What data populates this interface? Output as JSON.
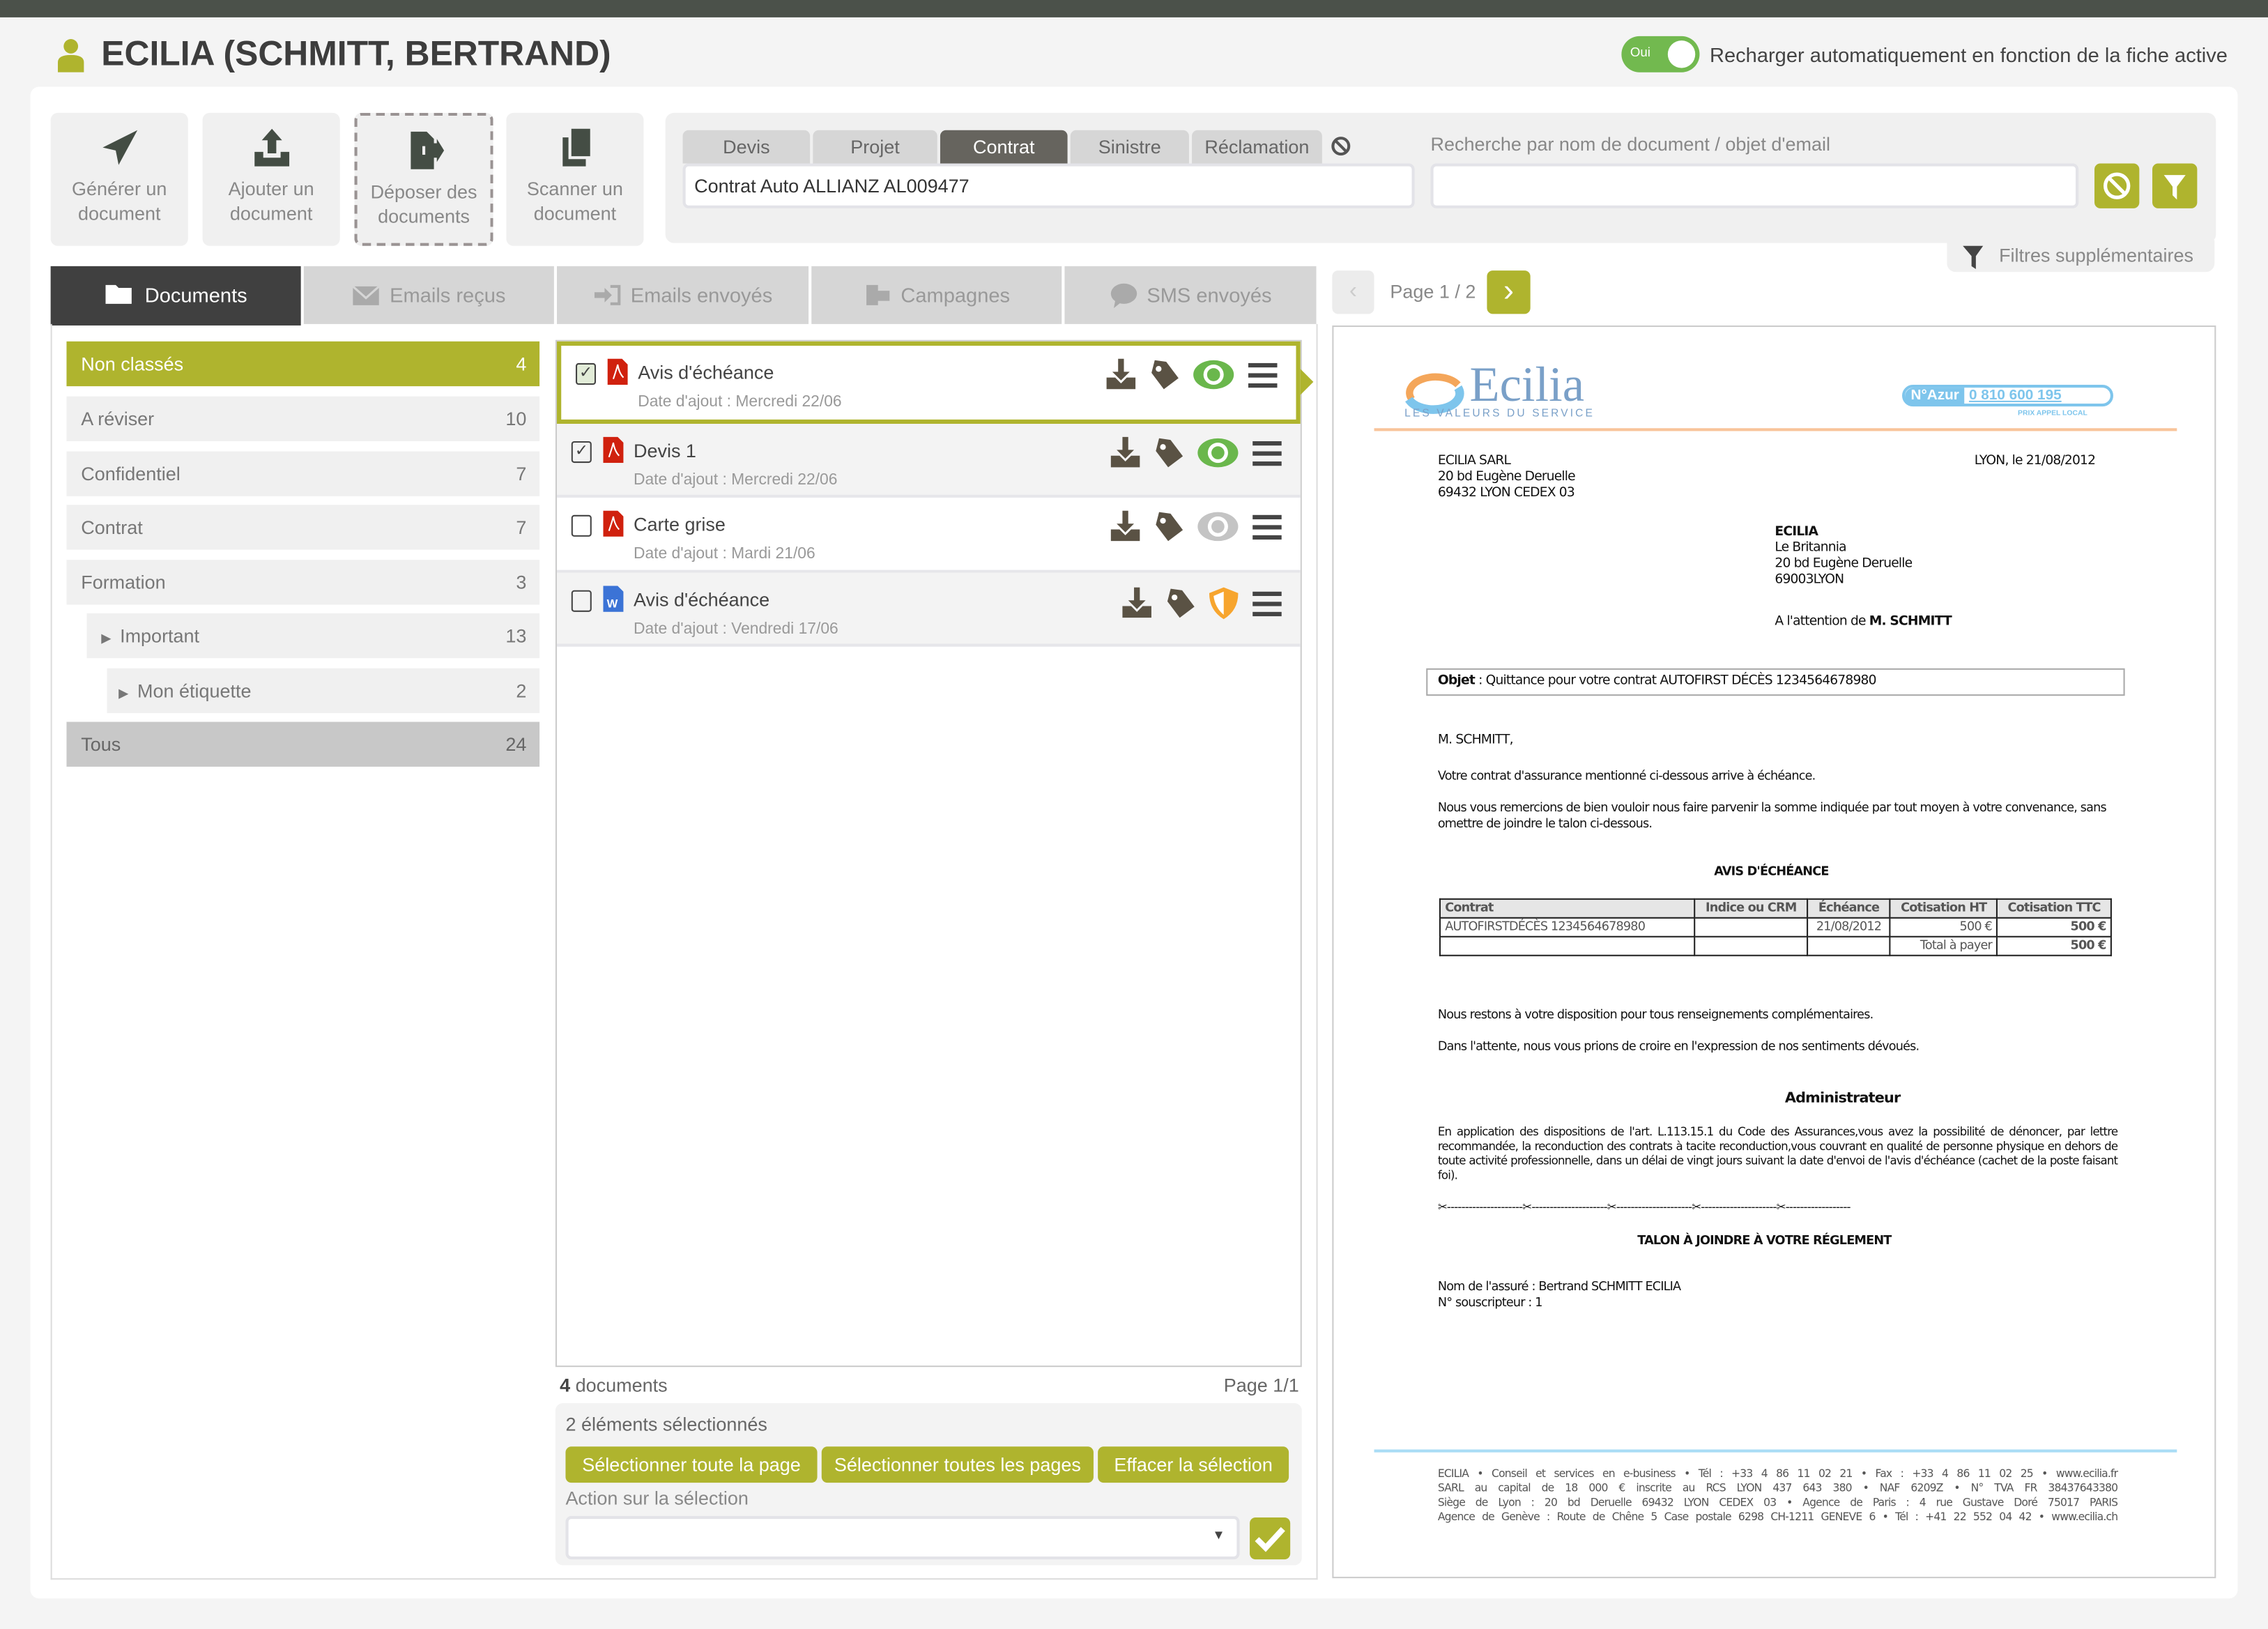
{
  "header": {
    "title": "ECILIA (SCHMITT, BERTRAND)",
    "toggle_state": "Oui",
    "toggle_label": "Recharger automatiquement en fonction de la fiche active"
  },
  "toolbar": [
    {
      "line1": "Générer un",
      "line2": "document",
      "icon": "paper-plane-icon"
    },
    {
      "line1": "Ajouter un",
      "line2": "document",
      "icon": "upload-icon"
    },
    {
      "line1": "Déposer des",
      "line2": "documents",
      "icon": "file-export-icon"
    },
    {
      "line1": "Scanner un",
      "line2": "document",
      "icon": "copy-icon"
    }
  ],
  "filters": {
    "context_tabs": [
      "Devis",
      "Projet",
      "Contrat",
      "Sinistre",
      "Réclamation"
    ],
    "active_context_tab": "Contrat",
    "context_value": "Contrat Auto ALLIANZ AL009477",
    "search_label": "Recherche par nom de document / objet d'email",
    "search_value": "",
    "extra_filters": "Filtres supplémentaires"
  },
  "main_tabs": [
    {
      "label": "Documents",
      "icon": "folder-icon"
    },
    {
      "label": "Emails reçus",
      "icon": "envelope-icon"
    },
    {
      "label": "Emails envoyés",
      "icon": "sign-in-icon"
    },
    {
      "label": "Campagnes",
      "icon": "campaign-icon"
    },
    {
      "label": "SMS envoyés",
      "icon": "sms-icon"
    }
  ],
  "categories": [
    {
      "label": "Non classés",
      "count": "4"
    },
    {
      "label": "A réviser",
      "count": "10"
    },
    {
      "label": "Confidentiel",
      "count": "7"
    },
    {
      "label": "Contrat",
      "count": "7"
    },
    {
      "label": "Formation",
      "count": "3"
    },
    {
      "label": "Important",
      "count": "13"
    },
    {
      "label": "Mon étiquette",
      "count": "2"
    },
    {
      "label": "Tous",
      "count": "24"
    }
  ],
  "documents": [
    {
      "name": "Avis d'échéance",
      "date": "Date d'ajout : Mercredi 22/06",
      "type": "pdf",
      "checked": true,
      "status": "eye-green"
    },
    {
      "name": "Devis 1",
      "date": "Date d'ajout : Mercredi 22/06",
      "type": "pdf",
      "checked": true,
      "status": "eye-green"
    },
    {
      "name": "Carte grise",
      "date": "Date d'ajout : Mardi 21/06",
      "type": "pdf",
      "checked": false,
      "status": "eye-gray"
    },
    {
      "name": "Avis d'échéance",
      "date": "Date d'ajout : Vendredi 17/06",
      "type": "word",
      "checked": false,
      "status": "shield-orange"
    }
  ],
  "list_footer": {
    "count": "4",
    "count_label": "documents",
    "page": "Page 1/1"
  },
  "selection": {
    "summary": "2 éléments sélectionnés",
    "buttons": [
      "Sélectionner toute la page",
      "Sélectionner toutes les pages",
      "Effacer la sélection"
    ],
    "action_label": "Action sur la sélection",
    "action_value": ""
  },
  "preview": {
    "pagination": "Page 1 / 2"
  },
  "letter": {
    "logo": "Ecilia",
    "logo_tagline": "LES VALEURS DU SERVICE",
    "azur_label": "N°Azur",
    "azur_number": "0 810 600 195",
    "azur_sub": "PRIX APPEL LOCAL",
    "sender": [
      "ECILIA SARL",
      "20 bd Eugène Deruelle",
      "69432 LYON CEDEX 03"
    ],
    "place_date": "LYON, le 21/08/2012",
    "recipient_name": "ECILIA",
    "recipient": [
      "Le Britannia",
      "20 bd Eugène Deruelle",
      "69003LYON"
    ],
    "attention_prefix": "A l'attention de ",
    "attention_name": "M. SCHMITT",
    "object_label": "Objet",
    "object_text": " : Quittance pour votre contrat AUTOFIRST DÉCÈS 1234564678980",
    "salutation": "M. SCHMITT,",
    "p1": "Votre contrat d'assurance mentionné ci-dessous arrive à échéance.",
    "p2": "Nous vous remercions de bien vouloir nous faire parvenir la somme indiquée par tout moyen à votre convenance, sans omettre de joindre le talon ci-dessous.",
    "table_title": "AVIS D'ÉCHÉANCE",
    "table_headers": [
      "Contrat",
      "Indice ou CRM",
      "Échéance",
      "Cotisation HT",
      "Cotisation TTC"
    ],
    "table_row": [
      "AUTOFIRSTDÉCÈS 1234564678980",
      "",
      "21/08/2012",
      "500  €",
      "500 €"
    ],
    "total_label": "Total à payer",
    "total_value": "500 €",
    "p3": "Nous restons à votre disposition pour tous renseignements complémentaires.",
    "p4": "Dans l'attente, nous vous prions de croire en l'expression de nos sentiments dévoués.",
    "signature": "Administrateur",
    "legal": "En application des dispositions de l'art. L.113.15.1 du Code des Assurances,vous avez la possibilité de dénoncer, par lettre recommandée, la reconduction des contrats à tacite reconduction,vous couvrant en qualité de personne physique en dehors de toute activité professionnelle, dans un délai de vingt jours  suivant la date d'envoi de l'avis d'échéance (cachet de la poste faisant foi).",
    "cut_line": "✂---------------------✂---------------------✂---------------------✂---------------------✂------------------",
    "talon_title": "TALON À JOINDRE À VOTRE RÉGLEMENT",
    "insured": "Nom de l'assuré : Bertrand SCHMITT ECILIA",
    "subscriber": "N° souscripteur : 1",
    "footer": [
      "ECILIA • Conseil et services en e-business • Tél : +33 4 86 11 02 21 • Fax : +33 4 86 11 02 25 • www.ecilia.fr",
      "SARL au capital de 18 000 € inscrite au RCS LYON 437 643 380 • NAF 6209Z • N° TVA FR 38437643380",
      "Siège de Lyon : 20 bd Deruelle 69432 LYON CEDEX 03 • Agence de Paris : 4 rue Gustave Doré 75017 PARIS",
      "Agence de Genève : Route de Chêne 5 Case postale 6298 CH-1211 GENEVE 6 • Tél : +41 22 552 04 42 • www.ecilia.ch"
    ]
  },
  "colors": {
    "accent": "#afb42e",
    "toggle": "#72b94f",
    "dark": "#404040",
    "topbar": "#4b514a",
    "pdf": "#d0210e",
    "word": "#3b73d6",
    "eye": "#6ab74c",
    "shield": "#f7a52e"
  }
}
